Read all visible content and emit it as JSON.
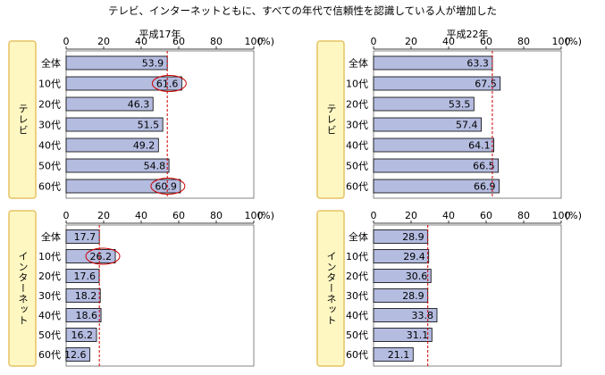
{
  "page": {
    "title": "テレビ、インターネットともに、すべての年代で信頼性を認識している人が増加した"
  },
  "chart_data": [
    {
      "type": "bar",
      "orientation": "horizontal",
      "title": "平成17年",
      "group": "テレビ",
      "categories": [
        "全体",
        "10代",
        "20代",
        "30代",
        "40代",
        "50代",
        "60代"
      ],
      "values": [
        53.9,
        61.6,
        46.3,
        51.5,
        49.2,
        54.8,
        60.9
      ],
      "highlighted": [
        "10代",
        "60代"
      ],
      "xlim": [
        0,
        100
      ],
      "ticks": [
        "0",
        "20",
        "40",
        "60",
        "80",
        "100"
      ],
      "unit": "(%)",
      "reference": "全体",
      "show_axis": true
    },
    {
      "type": "bar",
      "orientation": "horizontal",
      "title": "平成22年",
      "group": "テレビ",
      "categories": [
        "全体",
        "10代",
        "20代",
        "30代",
        "40代",
        "50代",
        "60代"
      ],
      "values": [
        63.3,
        67.5,
        53.5,
        57.4,
        64.1,
        66.5,
        66.9
      ],
      "highlighted": [],
      "xlim": [
        0,
        100
      ],
      "ticks": [
        "0",
        "20",
        "40",
        "60",
        "80",
        "100"
      ],
      "unit": "(%)",
      "reference": "全体",
      "show_axis": true
    },
    {
      "type": "bar",
      "orientation": "horizontal",
      "title": "",
      "group": "インターネット",
      "categories": [
        "全体",
        "10代",
        "20代",
        "30代",
        "40代",
        "50代",
        "60代"
      ],
      "values": [
        17.7,
        26.2,
        17.6,
        18.2,
        18.6,
        16.2,
        12.6
      ],
      "highlighted": [
        "10代"
      ],
      "xlim": [
        0,
        100
      ],
      "ticks": [
        "0",
        "20",
        "40",
        "60",
        "80",
        "100"
      ],
      "unit": "(%)",
      "reference": "全体",
      "show_axis": true
    },
    {
      "type": "bar",
      "orientation": "horizontal",
      "title": "",
      "group": "インターネット",
      "categories": [
        "全体",
        "10代",
        "20代",
        "30代",
        "40代",
        "50代",
        "60代"
      ],
      "values": [
        28.9,
        29.4,
        30.6,
        28.9,
        33.8,
        31.1,
        21.1
      ],
      "highlighted": [],
      "xlim": [
        0,
        100
      ],
      "ticks": [
        "0",
        "20",
        "40",
        "60",
        "80",
        "100"
      ],
      "unit": "(%)",
      "reference": "全体",
      "show_axis": true
    }
  ],
  "colors": {
    "bar_fill": "#B4BCE0",
    "bar_stroke": "#000000",
    "ref_line": "#CC0000",
    "highlight": "#CC0000",
    "label_box_fill": "#FFF7C2",
    "label_box_stroke": "#E6C262",
    "frame": "#666666"
  }
}
